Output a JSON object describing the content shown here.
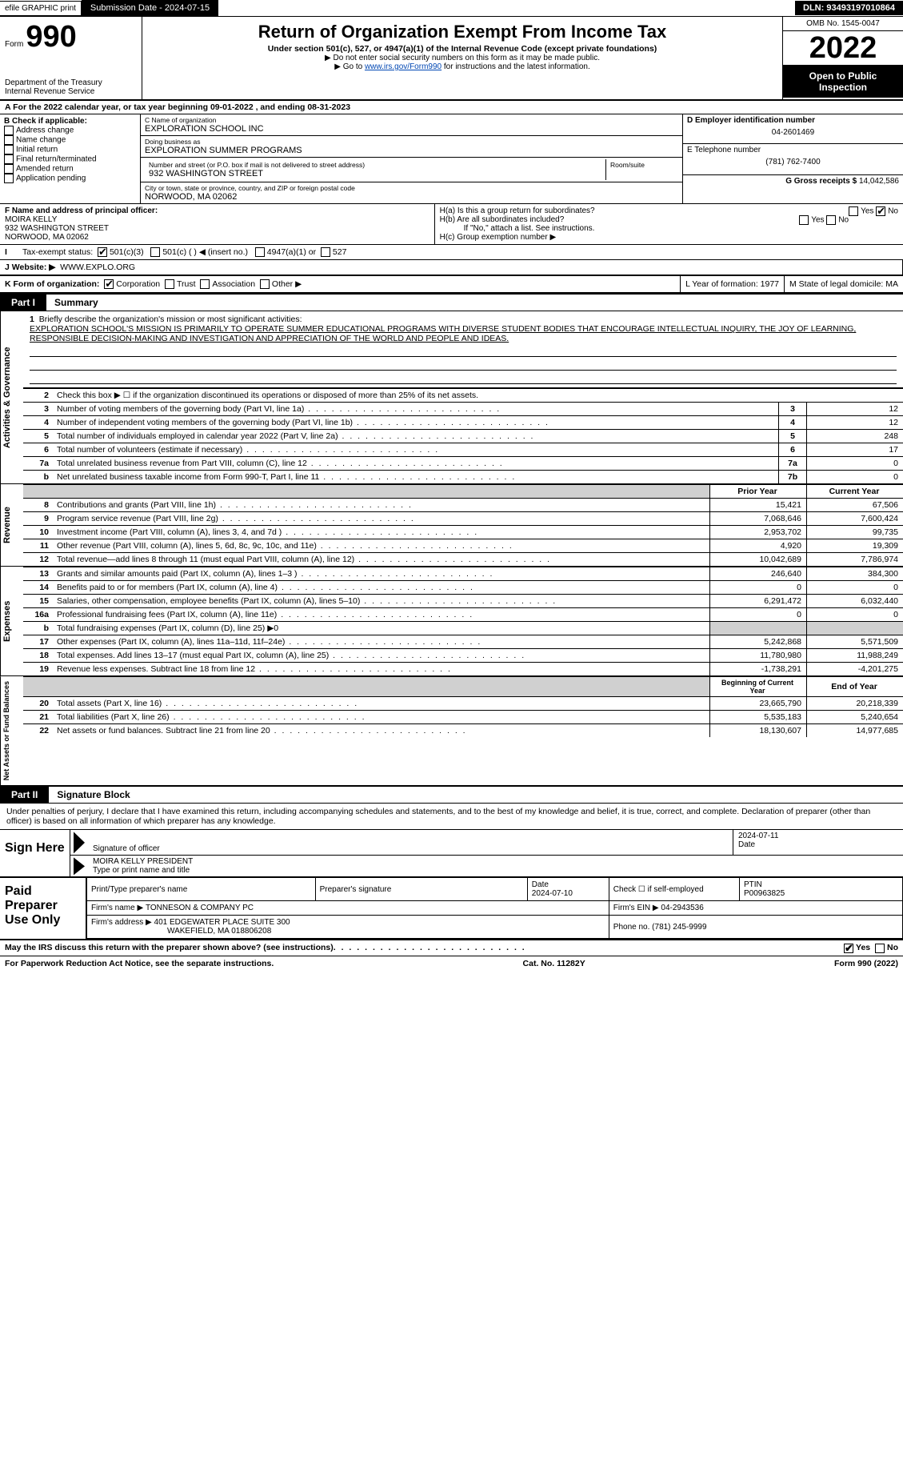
{
  "topbar": {
    "efile": "efile GRAPHIC print",
    "submission": "Submission Date - 2024-07-15",
    "dln": "DLN: 93493197010864"
  },
  "header": {
    "form_prefix": "Form",
    "form_number": "990",
    "dept1": "Department of the Treasury",
    "dept2": "Internal Revenue Service",
    "title": "Return of Organization Exempt From Income Tax",
    "sub": "Under section 501(c), 527, or 4947(a)(1) of the Internal Revenue Code (except private foundations)",
    "note1": "▶ Do not enter social security numbers on this form as it may be made public.",
    "note2_pre": "▶ Go to ",
    "note2_link": "www.irs.gov/Form990",
    "note2_post": " for instructions and the latest information.",
    "omb": "OMB No. 1545-0047",
    "year": "2022",
    "open": "Open to Public Inspection"
  },
  "line_a": "A For the 2022 calendar year, or tax year beginning 09-01-2022    , and ending 08-31-2023",
  "col_b": {
    "title": "B Check if applicable:",
    "items": [
      "Address change",
      "Name change",
      "Initial return",
      "Final return/terminated",
      "Amended return",
      "Application pending"
    ]
  },
  "col_c": {
    "name_lbl": "C Name of organization",
    "name": "EXPLORATION SCHOOL INC",
    "dba_lbl": "Doing business as",
    "dba": "EXPLORATION SUMMER PROGRAMS",
    "street_lbl": "Number and street (or P.O. box if mail is not delivered to street address)",
    "room_lbl": "Room/suite",
    "street": "932 WASHINGTON STREET",
    "city_lbl": "City or town, state or province, country, and ZIP or foreign postal code",
    "city": "NORWOOD, MA  02062"
  },
  "col_d": {
    "ein_lbl": "D Employer identification number",
    "ein": "04-2601469",
    "tel_lbl": "E Telephone number",
    "tel": "(781) 762-7400",
    "gross_lbl": "G Gross receipts $",
    "gross": "14,042,586"
  },
  "row_f": {
    "lbl": "F Name and address of principal officer:",
    "name": "MOIRA KELLY",
    "street": "932 WASHINGTON STREET",
    "city": "NORWOOD, MA  02062"
  },
  "row_h": {
    "a": "H(a)  Is this a group return for subordinates?",
    "b": "H(b)  Are all subordinates included?",
    "b2": "If \"No,\" attach a list. See instructions.",
    "c": "H(c)  Group exemption number ▶"
  },
  "row_i": {
    "lbl": "Tax-exempt status:",
    "opt1": "501(c)(3)",
    "opt2": "501(c) (   ) ◀ (insert no.)",
    "opt3": "4947(a)(1) or",
    "opt4": "527"
  },
  "row_j": {
    "j_lbl": "J   Website: ▶",
    "j_val": "WWW.EXPLO.ORG"
  },
  "row_k": {
    "k_lbl": "K Form of organization:",
    "opts": [
      "Corporation",
      "Trust",
      "Association",
      "Other ▶"
    ],
    "l": "L Year of formation: 1977",
    "m": "M State of legal domicile: MA"
  },
  "part1": {
    "lbl": "Part I",
    "title": "Summary"
  },
  "mission": {
    "num": "1",
    "lbl": "Briefly describe the organization's mission or most significant activities:",
    "text": "EXPLORATION SCHOOL'S MISSION IS PRIMARILY TO OPERATE SUMMER EDUCATIONAL PROGRAMS WITH DIVERSE STUDENT BODIES THAT ENCOURAGE INTELLECTUAL INQUIRY, THE JOY OF LEARNING, RESPONSIBLE DECISION-MAKING AND INVESTIGATION AND APPRECIATION OF THE WORLD AND PEOPLE AND IDEAS."
  },
  "gov_rows": [
    {
      "n": "2",
      "d": "Check this box ▶ ☐ if the organization discontinued its operations or disposed of more than 25% of its net assets.",
      "box": "",
      "v": ""
    },
    {
      "n": "3",
      "d": "Number of voting members of the governing body (Part VI, line 1a)",
      "box": "3",
      "v": "12"
    },
    {
      "n": "4",
      "d": "Number of independent voting members of the governing body (Part VI, line 1b)",
      "box": "4",
      "v": "12"
    },
    {
      "n": "5",
      "d": "Total number of individuals employed in calendar year 2022 (Part V, line 2a)",
      "box": "5",
      "v": "248"
    },
    {
      "n": "6",
      "d": "Total number of volunteers (estimate if necessary)",
      "box": "6",
      "v": "17"
    },
    {
      "n": "7a",
      "d": "Total unrelated business revenue from Part VIII, column (C), line 12",
      "box": "7a",
      "v": "0"
    },
    {
      "n": "b",
      "d": "Net unrelated business taxable income from Form 990-T, Part I, line 11",
      "box": "7b",
      "v": "0"
    }
  ],
  "col_hdrs": {
    "py": "Prior Year",
    "cy": "Current Year"
  },
  "rev_rows": [
    {
      "n": "8",
      "d": "Contributions and grants (Part VIII, line 1h)",
      "py": "15,421",
      "cy": "67,506"
    },
    {
      "n": "9",
      "d": "Program service revenue (Part VIII, line 2g)",
      "py": "7,068,646",
      "cy": "7,600,424"
    },
    {
      "n": "10",
      "d": "Investment income (Part VIII, column (A), lines 3, 4, and 7d )",
      "py": "2,953,702",
      "cy": "99,735"
    },
    {
      "n": "11",
      "d": "Other revenue (Part VIII, column (A), lines 5, 6d, 8c, 9c, 10c, and 11e)",
      "py": "4,920",
      "cy": "19,309"
    },
    {
      "n": "12",
      "d": "Total revenue—add lines 8 through 11 (must equal Part VIII, column (A), line 12)",
      "py": "10,042,689",
      "cy": "7,786,974"
    }
  ],
  "exp_rows": [
    {
      "n": "13",
      "d": "Grants and similar amounts paid (Part IX, column (A), lines 1–3 )",
      "py": "246,640",
      "cy": "384,300"
    },
    {
      "n": "14",
      "d": "Benefits paid to or for members (Part IX, column (A), line 4)",
      "py": "0",
      "cy": "0"
    },
    {
      "n": "15",
      "d": "Salaries, other compensation, employee benefits (Part IX, column (A), lines 5–10)",
      "py": "6,291,472",
      "cy": "6,032,440"
    },
    {
      "n": "16a",
      "d": "Professional fundraising fees (Part IX, column (A), line 11e)",
      "py": "0",
      "cy": "0"
    },
    {
      "n": "b",
      "d": "Total fundraising expenses (Part IX, column (D), line 25) ▶0",
      "py": "",
      "cy": "",
      "gray": true
    },
    {
      "n": "17",
      "d": "Other expenses (Part IX, column (A), lines 11a–11d, 11f–24e)",
      "py": "5,242,868",
      "cy": "5,571,509"
    },
    {
      "n": "18",
      "d": "Total expenses. Add lines 13–17 (must equal Part IX, column (A), line 25)",
      "py": "11,780,980",
      "cy": "11,988,249"
    },
    {
      "n": "19",
      "d": "Revenue less expenses. Subtract line 18 from line 12",
      "py": "-1,738,291",
      "cy": "-4,201,275"
    }
  ],
  "na_hdrs": {
    "py": "Beginning of Current Year",
    "cy": "End of Year"
  },
  "na_rows": [
    {
      "n": "20",
      "d": "Total assets (Part X, line 16)",
      "py": "23,665,790",
      "cy": "20,218,339"
    },
    {
      "n": "21",
      "d": "Total liabilities (Part X, line 26)",
      "py": "5,535,183",
      "cy": "5,240,654"
    },
    {
      "n": "22",
      "d": "Net assets or fund balances. Subtract line 21 from line 20",
      "py": "18,130,607",
      "cy": "14,977,685"
    }
  ],
  "part2": {
    "lbl": "Part II",
    "title": "Signature Block"
  },
  "sig_intro": "Under penalties of perjury, I declare that I have examined this return, including accompanying schedules and statements, and to the best of my knowledge and belief, it is true, correct, and complete. Declaration of preparer (other than officer) is based on all information of which preparer has any knowledge.",
  "sign": {
    "here": "Sign Here",
    "sig_lbl": "Signature of officer",
    "date_lbl": "Date",
    "date": "2024-07-11",
    "name": "MOIRA KELLY  PRESIDENT",
    "name_lbl": "Type or print name and title"
  },
  "paid": {
    "lbl": "Paid Preparer Use Only",
    "h1": "Print/Type preparer's name",
    "h2": "Preparer's signature",
    "h3": "Date",
    "date": "2024-07-10",
    "h4": "Check ☐ if self-employed",
    "h5": "PTIN",
    "ptin": "P00963825",
    "firm_lbl": "Firm's name    ▶",
    "firm": "TONNESON & COMPANY PC",
    "ein_lbl": "Firm's EIN ▶",
    "ein": "04-2943536",
    "addr_lbl": "Firm's address ▶",
    "addr1": "401 EDGEWATER PLACE SUITE 300",
    "addr2": "WAKEFIELD, MA  018806208",
    "phone_lbl": "Phone no.",
    "phone": "(781) 245-9999"
  },
  "discuss": "May the IRS discuss this return with the preparer shown above? (see instructions)",
  "footer": {
    "l": "For Paperwork Reduction Act Notice, see the separate instructions.",
    "m": "Cat. No. 11282Y",
    "r": "Form 990 (2022)"
  },
  "side_labels": {
    "gov": "Activities & Governance",
    "rev": "Revenue",
    "exp": "Expenses",
    "na": "Net Assets or Fund Balances"
  }
}
